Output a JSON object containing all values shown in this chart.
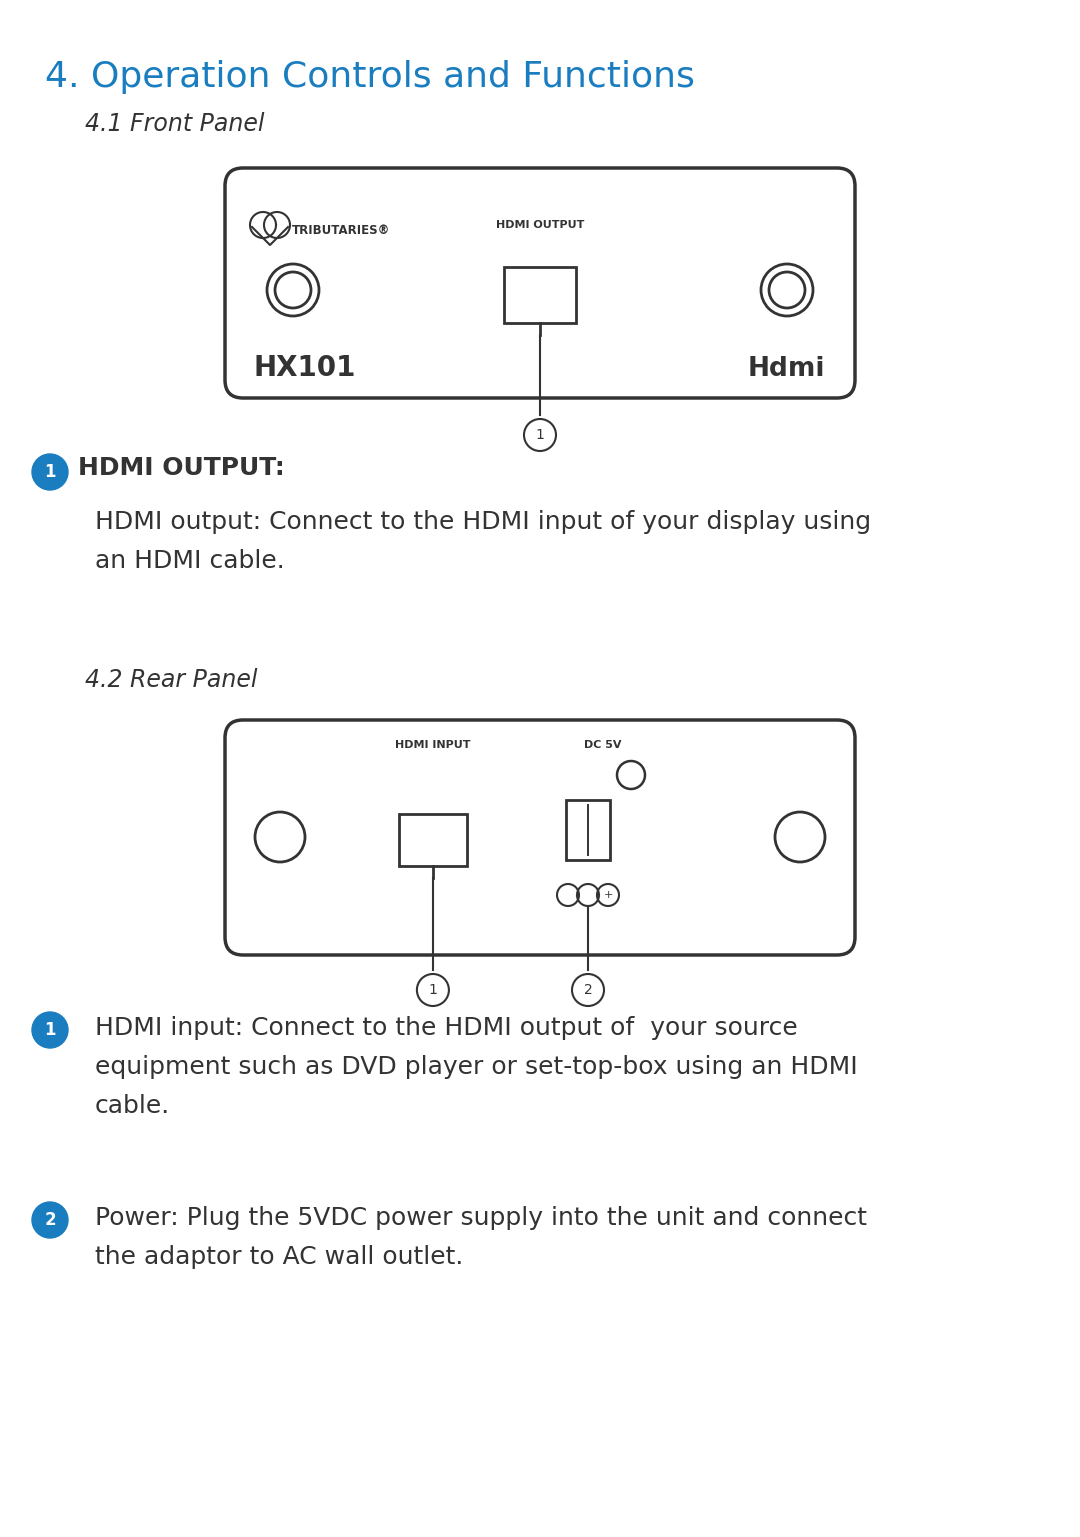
{
  "title": "4. Operation Controls and Functions",
  "title_color": "#1A7DC0",
  "section1_subtitle": "4.1 Front Panel",
  "section2_subtitle": "4.2 Rear Panel",
  "bg_color": "#ffffff",
  "item1_label": "HDMI OUTPUT:",
  "item1_desc": "HDMI output: Connect to the HDMI input of your display using\nan HDMI cable.",
  "item2_label_rear1": "HDMI input: Connect to the HDMI output of  your source\nequipment such as DVD player or set-top-box using an HDMI\ncable.",
  "item2_label_rear2": "Power: Plug the 5VDC power supply into the unit and connect\nthe adaptor to AC wall outlet.",
  "badge_color": "#1A7DC0",
  "text_color": "#333333",
  "diagram_line_color": "#333333",
  "title_fontsize": 26,
  "subtitle_fontsize": 17,
  "body_fontsize": 18,
  "label_fontsize": 18
}
